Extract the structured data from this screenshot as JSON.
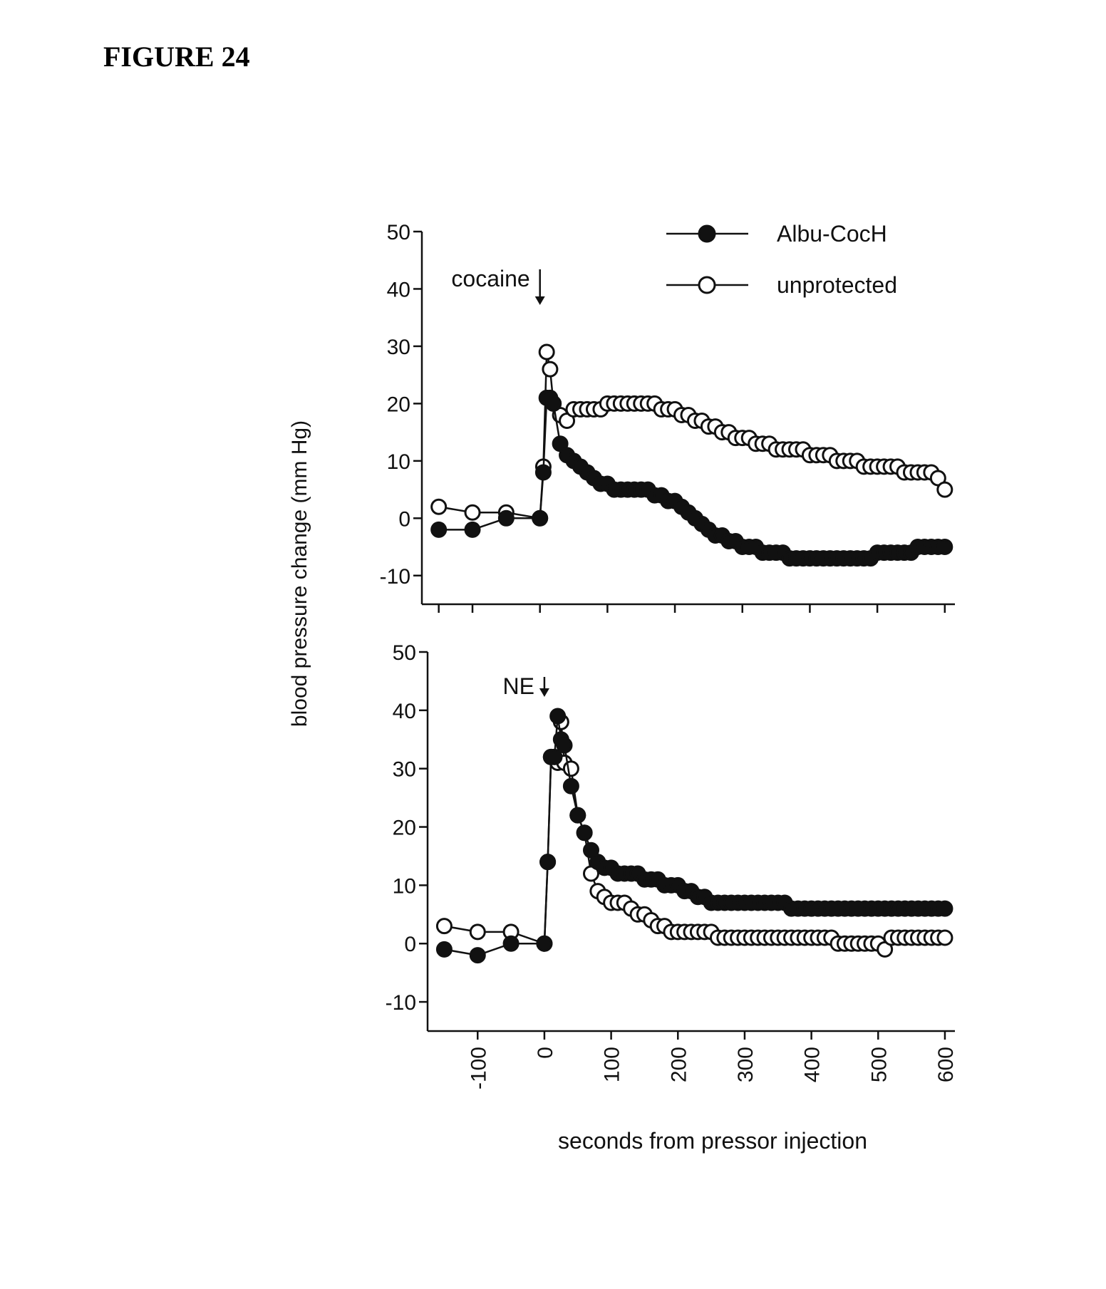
{
  "figure_label": "FIGURE 24",
  "colors": {
    "filled_marker": "#111111",
    "open_marker_fill": "#ffffff",
    "ink": "#111111"
  },
  "chart_data": [
    {
      "type": "line",
      "panel": "top",
      "ylabel": "blood pressure change (mm Hg)",
      "xlabel": "",
      "ylim": [
        -15,
        50
      ],
      "yticks": [
        -10,
        0,
        10,
        20,
        30,
        40,
        50
      ],
      "xlim": [
        -175,
        615
      ],
      "xticks": [
        -150,
        -100,
        0,
        100,
        200,
        300,
        400,
        500,
        600
      ],
      "annotation": {
        "text": "cocaine",
        "x": 0
      },
      "legend": {
        "position": "top-right",
        "entries": [
          {
            "label": "Albu-CocH",
            "marker": "filled"
          },
          {
            "label": "unprotected",
            "marker": "open"
          }
        ]
      },
      "series": [
        {
          "name": "Albu-CocH",
          "marker": "filled",
          "x": [
            -150,
            -100,
            -50,
            0,
            5,
            10,
            15,
            20,
            30,
            40,
            50,
            60,
            70,
            80,
            90,
            100,
            110,
            120,
            130,
            140,
            150,
            160,
            170,
            180,
            190,
            200,
            210,
            220,
            230,
            240,
            250,
            260,
            270,
            280,
            290,
            300,
            310,
            320,
            330,
            340,
            350,
            360,
            370,
            380,
            390,
            400,
            410,
            420,
            430,
            440,
            450,
            460,
            470,
            480,
            490,
            500,
            510,
            520,
            530,
            540,
            550,
            560,
            570,
            580,
            590,
            600
          ],
          "y": [
            -2,
            -2,
            0,
            0,
            8,
            21,
            21,
            20,
            13,
            11,
            10,
            9,
            8,
            7,
            6,
            6,
            5,
            5,
            5,
            5,
            5,
            5,
            4,
            4,
            3,
            3,
            2,
            1,
            0,
            -1,
            -2,
            -3,
            -3,
            -4,
            -4,
            -5,
            -5,
            -5,
            -6,
            -6,
            -6,
            -6,
            -7,
            -7,
            -7,
            -7,
            -7,
            -7,
            -7,
            -7,
            -7,
            -7,
            -7,
            -7,
            -7,
            -6,
            -6,
            -6,
            -6,
            -6,
            -6,
            -5,
            -5,
            -5,
            -5,
            -5
          ]
        },
        {
          "name": "unprotected",
          "marker": "open",
          "x": [
            -150,
            -100,
            -50,
            0,
            5,
            10,
            15,
            20,
            30,
            40,
            50,
            60,
            70,
            80,
            90,
            100,
            110,
            120,
            130,
            140,
            150,
            160,
            170,
            180,
            190,
            200,
            210,
            220,
            230,
            240,
            250,
            260,
            270,
            280,
            290,
            300,
            310,
            320,
            330,
            340,
            350,
            360,
            370,
            380,
            390,
            400,
            410,
            420,
            430,
            440,
            450,
            460,
            470,
            480,
            490,
            500,
            510,
            520,
            530,
            540,
            550,
            560,
            570,
            580,
            590,
            600
          ],
          "y": [
            2,
            1,
            1,
            0,
            9,
            29,
            26,
            20,
            18,
            17,
            19,
            19,
            19,
            19,
            19,
            20,
            20,
            20,
            20,
            20,
            20,
            20,
            20,
            19,
            19,
            19,
            18,
            18,
            17,
            17,
            16,
            16,
            15,
            15,
            14,
            14,
            14,
            13,
            13,
            13,
            12,
            12,
            12,
            12,
            12,
            11,
            11,
            11,
            11,
            10,
            10,
            10,
            10,
            9,
            9,
            9,
            9,
            9,
            9,
            8,
            8,
            8,
            8,
            8,
            7,
            5
          ]
        }
      ]
    },
    {
      "type": "line",
      "panel": "bottom",
      "ylabel": "blood pressure change (mm Hg)",
      "xlabel": "seconds from pressor injection",
      "ylim": [
        -15,
        50
      ],
      "yticks": [
        -10,
        0,
        10,
        20,
        30,
        40,
        50
      ],
      "xlim": [
        -175,
        615
      ],
      "xticks": [
        -100,
        0,
        100,
        200,
        300,
        400,
        500,
        600
      ],
      "xtick_labels": [
        "-100",
        "0",
        "100",
        "200",
        "300",
        "400",
        "500",
        "600"
      ],
      "annotation": {
        "text": "NE",
        "x": 0
      },
      "series": [
        {
          "name": "Albu-CocH",
          "marker": "filled",
          "x": [
            -150,
            -100,
            -50,
            0,
            5,
            10,
            15,
            20,
            25,
            30,
            40,
            50,
            60,
            70,
            80,
            90,
            100,
            110,
            120,
            130,
            140,
            150,
            160,
            170,
            180,
            190,
            200,
            210,
            220,
            230,
            240,
            250,
            260,
            270,
            280,
            290,
            300,
            310,
            320,
            330,
            340,
            350,
            360,
            370,
            380,
            390,
            400,
            410,
            420,
            430,
            440,
            450,
            460,
            470,
            480,
            490,
            500,
            510,
            520,
            530,
            540,
            550,
            560,
            570,
            580,
            590,
            600
          ],
          "y": [
            -1,
            -2,
            0,
            0,
            14,
            32,
            32,
            39,
            35,
            34,
            27,
            22,
            19,
            16,
            14,
            13,
            13,
            12,
            12,
            12,
            12,
            11,
            11,
            11,
            10,
            10,
            10,
            9,
            9,
            8,
            8,
            7,
            7,
            7,
            7,
            7,
            7,
            7,
            7,
            7,
            7,
            7,
            7,
            6,
            6,
            6,
            6,
            6,
            6,
            6,
            6,
            6,
            6,
            6,
            6,
            6,
            6,
            6,
            6,
            6,
            6,
            6,
            6,
            6,
            6,
            6,
            6
          ]
        },
        {
          "name": "unprotected",
          "marker": "open",
          "x": [
            -150,
            -100,
            -50,
            0,
            5,
            10,
            15,
            20,
            25,
            30,
            40,
            50,
            60,
            70,
            80,
            90,
            100,
            110,
            120,
            130,
            140,
            150,
            160,
            170,
            180,
            190,
            200,
            210,
            220,
            230,
            240,
            250,
            260,
            270,
            280,
            290,
            300,
            310,
            320,
            330,
            340,
            350,
            360,
            370,
            380,
            390,
            400,
            410,
            420,
            430,
            440,
            450,
            460,
            470,
            480,
            490,
            500,
            510,
            520,
            530,
            540,
            550,
            560,
            570,
            580,
            590,
            600
          ],
          "y": [
            3,
            2,
            2,
            0,
            14,
            32,
            32,
            31,
            38,
            31,
            30,
            22,
            19,
            12,
            9,
            8,
            7,
            7,
            7,
            6,
            5,
            5,
            4,
            3,
            3,
            2,
            2,
            2,
            2,
            2,
            2,
            2,
            1,
            1,
            1,
            1,
            1,
            1,
            1,
            1,
            1,
            1,
            1,
            1,
            1,
            1,
            1,
            1,
            1,
            1,
            0,
            0,
            0,
            0,
            0,
            0,
            0,
            -1,
            1,
            1,
            1,
            1,
            1,
            1,
            1,
            1,
            1
          ]
        }
      ]
    }
  ]
}
